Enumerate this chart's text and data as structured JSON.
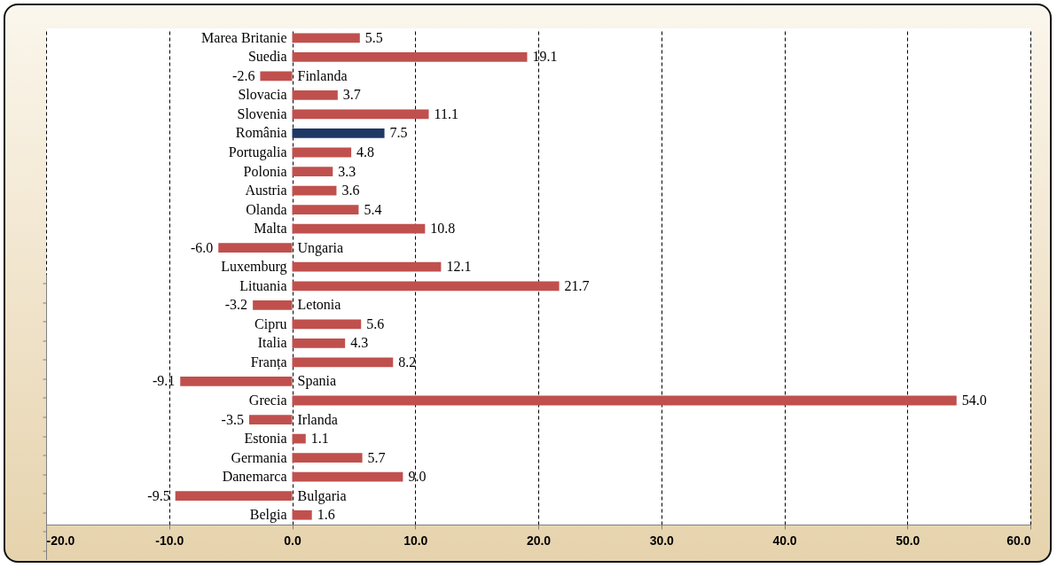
{
  "chart_data": {
    "type": "bar",
    "orientation": "horizontal",
    "categories": [
      "Marea Britanie",
      "Suedia",
      "Finlanda",
      "Slovacia",
      "Slovenia",
      "România",
      "Portugalia",
      "Polonia",
      "Austria",
      "Olanda",
      "Malta",
      "Ungaria",
      "Luxemburg",
      "Lituania",
      "Letonia",
      "Cipru",
      "Italia",
      "Franța",
      "Spania",
      "Grecia",
      "Irlanda",
      "Estonia",
      "Germania",
      "Danemarca",
      "Bulgaria",
      "Belgia"
    ],
    "values": [
      5.5,
      19.1,
      -2.6,
      3.7,
      11.1,
      7.5,
      4.8,
      3.3,
      3.6,
      5.4,
      10.8,
      -6.0,
      12.1,
      21.7,
      -3.2,
      5.6,
      4.3,
      8.2,
      -9.1,
      54.0,
      -3.5,
      1.1,
      5.7,
      9.0,
      -9.5,
      1.6
    ],
    "value_labels": [
      "5.5",
      "19.1",
      "-2.6",
      "3.7",
      "11.1",
      "7.5",
      "4.8",
      "3.3",
      "3.6",
      "5.4",
      "10.8",
      "-6.0",
      "12.1",
      "21.7",
      "-3.2",
      "5.6",
      "4.3",
      "8.2",
      "-9.1",
      "54.0",
      "-3.5",
      "1.1",
      "5.7",
      "9.0",
      "-9.5",
      "1.6"
    ],
    "colors": [
      "#c0504d",
      "#c0504d",
      "#c0504d",
      "#c0504d",
      "#c0504d",
      "#1f3864",
      "#c0504d",
      "#c0504d",
      "#c0504d",
      "#c0504d",
      "#c0504d",
      "#c0504d",
      "#c0504d",
      "#c0504d",
      "#c0504d",
      "#c0504d",
      "#c0504d",
      "#c0504d",
      "#c0504d",
      "#c0504d",
      "#c0504d",
      "#c0504d",
      "#c0504d",
      "#c0504d",
      "#c0504d",
      "#c0504d"
    ],
    "xlim": [
      -20,
      60
    ],
    "xticks": [
      {
        "value": -20,
        "label": "-20.0"
      },
      {
        "value": -10,
        "label": "-10.0"
      },
      {
        "value": 0,
        "label": "0.0"
      },
      {
        "value": 10,
        "label": "10.0"
      },
      {
        "value": 20,
        "label": "20.0"
      },
      {
        "value": 30,
        "label": "30.0"
      },
      {
        "value": 40,
        "label": "40.0"
      },
      {
        "value": 50,
        "label": "50.0"
      },
      {
        "value": 60,
        "label": "60.0"
      }
    ],
    "grid": "x",
    "legend": false
  }
}
